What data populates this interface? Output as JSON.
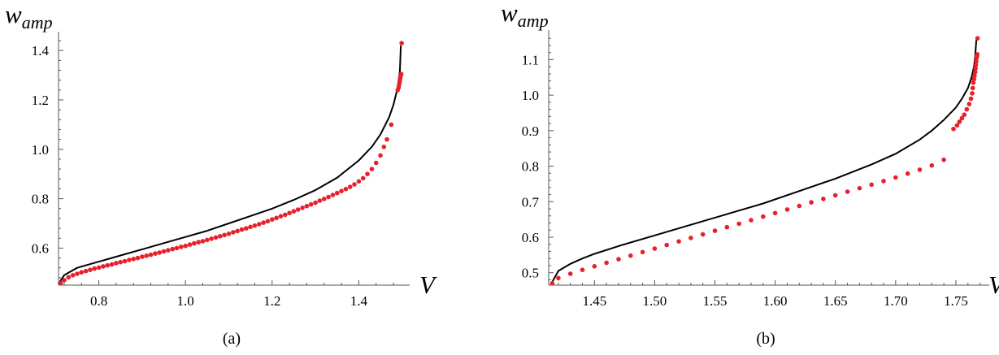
{
  "chart_data": [
    {
      "type": "line",
      "caption": "(a)",
      "xlabel": "V",
      "ylabel": {
        "base": "w",
        "sub": "amp"
      },
      "xlim": [
        0.707,
        1.51
      ],
      "ylim": [
        0.45,
        1.45
      ],
      "xticks": [
        0.8,
        1.0,
        1.2,
        1.4
      ],
      "xtick_labels": [
        "0.8",
        "1.0",
        "1.2",
        "1.4"
      ],
      "yticks": [
        0.6,
        0.8,
        1.0,
        1.2,
        1.4
      ],
      "ytick_labels": [
        "0.6",
        "0.8",
        "1.0",
        "1.2",
        "1.4"
      ],
      "colors": {
        "curve": "#000000",
        "points": "#e8202a"
      },
      "series": [
        {
          "kind": "curve",
          "x": [
            0.707,
            0.72,
            0.75,
            0.8,
            0.85,
            0.9,
            0.95,
            1.0,
            1.05,
            1.1,
            1.15,
            1.2,
            1.25,
            1.3,
            1.35,
            1.4,
            1.43,
            1.45,
            1.47,
            1.48,
            1.49,
            1.495,
            1.497
          ],
          "y": [
            0.455,
            0.49,
            0.52,
            0.545,
            0.57,
            0.595,
            0.62,
            0.645,
            0.67,
            0.7,
            0.73,
            0.76,
            0.795,
            0.835,
            0.885,
            0.955,
            1.01,
            1.06,
            1.13,
            1.18,
            1.25,
            1.32,
            1.42
          ]
        },
        {
          "kind": "points",
          "x": [
            0.712,
            0.72,
            0.73,
            0.74,
            0.75,
            0.76,
            0.77,
            0.78,
            0.79,
            0.8,
            0.81,
            0.82,
            0.83,
            0.84,
            0.85,
            0.86,
            0.87,
            0.88,
            0.89,
            0.9,
            0.91,
            0.92,
            0.93,
            0.94,
            0.95,
            0.96,
            0.97,
            0.98,
            0.99,
            1.0,
            1.01,
            1.02,
            1.03,
            1.04,
            1.05,
            1.06,
            1.07,
            1.08,
            1.09,
            1.1,
            1.11,
            1.12,
            1.13,
            1.14,
            1.15,
            1.16,
            1.17,
            1.18,
            1.19,
            1.2,
            1.21,
            1.22,
            1.23,
            1.24,
            1.25,
            1.26,
            1.27,
            1.28,
            1.29,
            1.3,
            1.31,
            1.32,
            1.33,
            1.34,
            1.35,
            1.36,
            1.37,
            1.38,
            1.39,
            1.4,
            1.41,
            1.42,
            1.43,
            1.44,
            1.45,
            1.458,
            1.465,
            1.475,
            1.49,
            1.492,
            1.493,
            1.494,
            1.495,
            1.496,
            1.497,
            1.498,
            1.499
          ],
          "y": [
            0.458,
            0.47,
            0.482,
            0.49,
            0.496,
            0.502,
            0.507,
            0.512,
            0.517,
            0.521,
            0.526,
            0.53,
            0.534,
            0.539,
            0.543,
            0.547,
            0.552,
            0.556,
            0.56,
            0.565,
            0.569,
            0.573,
            0.578,
            0.582,
            0.587,
            0.591,
            0.596,
            0.6,
            0.605,
            0.609,
            0.614,
            0.619,
            0.624,
            0.628,
            0.633,
            0.638,
            0.643,
            0.648,
            0.653,
            0.658,
            0.664,
            0.669,
            0.675,
            0.68,
            0.686,
            0.691,
            0.697,
            0.703,
            0.709,
            0.716,
            0.722,
            0.729,
            0.735,
            0.742,
            0.749,
            0.756,
            0.763,
            0.77,
            0.777,
            0.784,
            0.792,
            0.799,
            0.807,
            0.815,
            0.823,
            0.831,
            0.839,
            0.848,
            0.858,
            0.87,
            0.883,
            0.9,
            0.92,
            0.945,
            0.975,
            1.01,
            1.04,
            1.1,
            1.24,
            1.25,
            1.26,
            1.27,
            1.28,
            1.29,
            1.3,
            1.305,
            1.43
          ]
        }
      ]
    },
    {
      "type": "line",
      "caption": "(b)",
      "xlabel": "V",
      "ylabel": {
        "base": "w",
        "sub": "amp"
      },
      "xlim": [
        1.412,
        1.775
      ],
      "ylim": [
        0.465,
        1.165
      ],
      "xticks": [
        1.45,
        1.5,
        1.55,
        1.6,
        1.65,
        1.7,
        1.75
      ],
      "xtick_labels": [
        "1.45",
        "1.50",
        "1.55",
        "1.60",
        "1.65",
        "1.70",
        "1.75"
      ],
      "yticks": [
        0.5,
        0.6,
        0.7,
        0.8,
        0.9,
        1.0,
        1.1
      ],
      "ytick_labels": [
        "0.5",
        "0.6",
        "0.7",
        "0.8",
        "0.9",
        "1.0",
        "1.1"
      ],
      "colors": {
        "curve": "#000000",
        "points": "#e8202a"
      },
      "series": [
        {
          "kind": "curve",
          "x": [
            1.414,
            1.42,
            1.43,
            1.44,
            1.45,
            1.47,
            1.5,
            1.53,
            1.56,
            1.59,
            1.62,
            1.65,
            1.68,
            1.7,
            1.72,
            1.73,
            1.74,
            1.75,
            1.755,
            1.76,
            1.763,
            1.765,
            1.766,
            1.767
          ],
          "y": [
            0.468,
            0.505,
            0.525,
            0.54,
            0.553,
            0.575,
            0.605,
            0.635,
            0.665,
            0.695,
            0.73,
            0.765,
            0.805,
            0.835,
            0.875,
            0.9,
            0.93,
            0.965,
            0.99,
            1.02,
            1.05,
            1.08,
            1.11,
            1.155
          ]
        },
        {
          "kind": "points",
          "x": [
            1.415,
            1.42,
            1.43,
            1.44,
            1.45,
            1.46,
            1.47,
            1.48,
            1.49,
            1.5,
            1.51,
            1.52,
            1.53,
            1.54,
            1.55,
            1.56,
            1.57,
            1.58,
            1.59,
            1.6,
            1.61,
            1.62,
            1.63,
            1.64,
            1.65,
            1.66,
            1.67,
            1.68,
            1.69,
            1.7,
            1.71,
            1.72,
            1.73,
            1.74,
            1.748,
            1.751,
            1.753,
            1.755,
            1.757,
            1.759,
            1.761,
            1.7625,
            1.7635,
            1.764,
            1.7645,
            1.765,
            1.7655,
            1.766,
            1.7663,
            1.7666,
            1.7669,
            1.7672,
            1.7675,
            1.7678,
            1.768
          ],
          "y": [
            0.47,
            0.485,
            0.497,
            0.508,
            0.518,
            0.528,
            0.538,
            0.548,
            0.558,
            0.568,
            0.578,
            0.588,
            0.598,
            0.608,
            0.618,
            0.628,
            0.638,
            0.648,
            0.658,
            0.668,
            0.678,
            0.688,
            0.698,
            0.708,
            0.718,
            0.728,
            0.738,
            0.748,
            0.758,
            0.768,
            0.779,
            0.79,
            0.802,
            0.818,
            0.905,
            0.915,
            0.925,
            0.935,
            0.945,
            0.96,
            0.975,
            0.99,
            1.005,
            1.02,
            1.035,
            1.045,
            1.055,
            1.065,
            1.075,
            1.085,
            1.095,
            1.105,
            1.11,
            1.115,
            1.16
          ]
        }
      ]
    }
  ]
}
